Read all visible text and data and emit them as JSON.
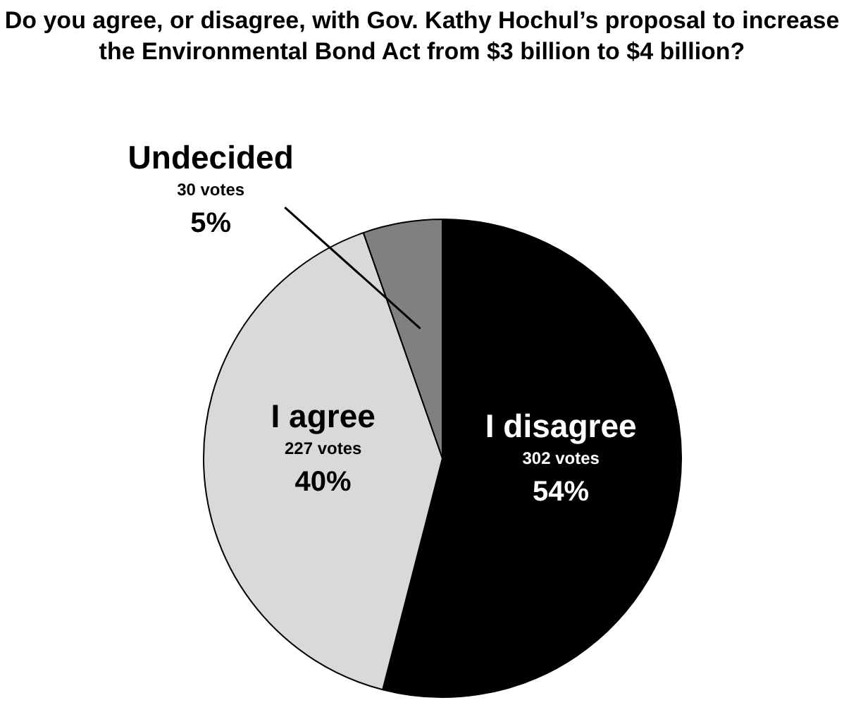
{
  "chart_data": {
    "type": "pie",
    "title": "Do you agree, or disagree, with Gov. Kathy Hochul’s proposal to increase the Environmental Bond Act from $3 billion to $4 billion?",
    "categories": [
      "I disagree",
      "I agree",
      "Undecided"
    ],
    "values": [
      302,
      227,
      30
    ],
    "colors": [
      "#000000",
      "#d9d9d9",
      "#808080"
    ],
    "value_labels": [
      "302 votes\n54%",
      "227 votes\n40%",
      "30 votes\n5%"
    ],
    "legend": false
  }
}
